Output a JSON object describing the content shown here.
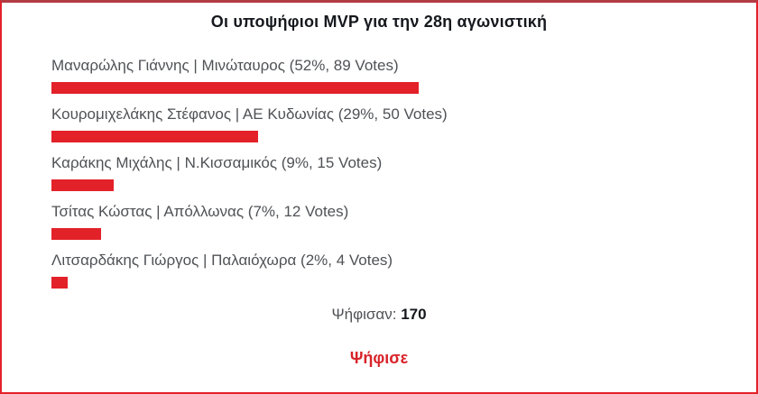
{
  "poll": {
    "title": "Οι υποψήφιοι MVP για την 28η αγωνιστική",
    "options": [
      {
        "label": "Μαναρώλης Γιάννης | Μινώταυρος (52%, 89 Votes)",
        "percent_display": "52%",
        "votes": 89,
        "bar_percent": 52.35
      },
      {
        "label": "Κουρομιχελάκης Στέφανος | ΑΕ Κυδωνίας (29%, 50 Votes)",
        "percent_display": "29%",
        "votes": 50,
        "bar_percent": 29.41
      },
      {
        "label": "Καράκης Μιχάλης | Ν.Κισσαμικός (9%, 15 Votes)",
        "percent_display": "9%",
        "votes": 15,
        "bar_percent": 8.82
      },
      {
        "label": "Τσίτας Κώστας | Απόλλωνας (7%, 12 Votes)",
        "percent_display": "7%",
        "votes": 12,
        "bar_percent": 7.06
      },
      {
        "label": "Λιτσαρδάκης Γιώργος | Παλαιόχωρα (2%, 4 Votes)",
        "percent_display": "2%",
        "votes": 4,
        "bar_percent": 2.35
      }
    ],
    "total_label": "Ψήφισαν:",
    "total_value": "170",
    "vote_link_label": "Ψήφισε",
    "colors": {
      "bar": "#e32129",
      "border": "#e32129",
      "border_top": "#b23b44",
      "link": "#d8232a",
      "title_text": "#15181d",
      "label_text": "#4f5256"
    }
  }
}
